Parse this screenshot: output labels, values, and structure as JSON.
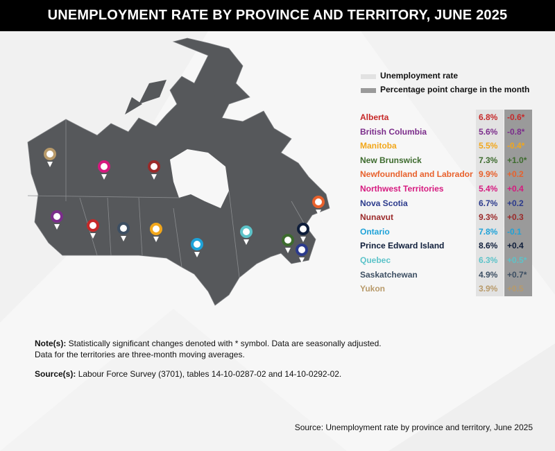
{
  "header": {
    "title": "UNEMPLOYMENT RATE BY PROVINCE AND TERRITORY, JUNE 2025"
  },
  "legend": [
    "Unemployment rate",
    "Percentage point charge in the month"
  ],
  "table": {
    "rows": [
      {
        "name": "Alberta",
        "rate": "6.8%",
        "change": "-0.6*",
        "color": "#c62828"
      },
      {
        "name": "British Columbia",
        "rate": "5.6%",
        "change": "-0.8*",
        "color": "#7b2d8b"
      },
      {
        "name": "Manitoba",
        "rate": "5.5%",
        "change": "-0.4*",
        "color": "#f2a71b"
      },
      {
        "name": "New Brunswick",
        "rate": "7.3%",
        "change": "+1.0*",
        "color": "#3d6b2e"
      },
      {
        "name": "Newfoundland and Labrador",
        "rate": "9.9%",
        "change": "+0.2",
        "color": "#e8612c"
      },
      {
        "name": "Northwest Territories",
        "rate": "5.4%",
        "change": "+0.4",
        "color": "#d6197f"
      },
      {
        "name": "Nova Scotia",
        "rate": "6.7%",
        "change": "+0.2",
        "color": "#2b3a8c"
      },
      {
        "name": "Nunavut",
        "rate": "9.3%",
        "change": "+0.3",
        "color": "#9b2a2a"
      },
      {
        "name": "Ontario",
        "rate": "7.8%",
        "change": "-0.1",
        "color": "#1ea2d8"
      },
      {
        "name": "Prince Edward Island",
        "rate": "8.6%",
        "change": "+0.4",
        "color": "#0e1d3a"
      },
      {
        "name": "Quebec",
        "rate": "6.3%",
        "change": "+0.5*",
        "color": "#5cc3c9"
      },
      {
        "name": "Saskatchewan",
        "rate": "4.9%",
        "change": "+0.7*",
        "color": "#3d4f63"
      },
      {
        "name": "Yukon",
        "rate": "3.9%",
        "change": "+0.5",
        "color": "#b89a6a"
      }
    ]
  },
  "notes": {
    "label": "Note(s):",
    "line1": "Statistically significant changes denoted with * symbol. Data are seasonally adjusted.",
    "line2": "Data for the territories are three-month moving averages."
  },
  "sources": {
    "label": "Source(s):",
    "text": "Labour Force Survey (3701), tables 14-10-0287-02 and 14-10-0292-02."
  },
  "footer": "Source: Unemployment rate by province and territory, June 2025"
}
